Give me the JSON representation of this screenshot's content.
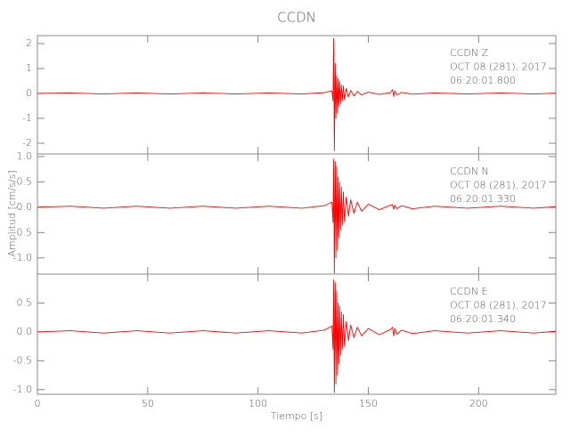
{
  "chart_data": [
    {
      "type": "line",
      "title": "CCDN",
      "annotation": [
        "CCDN   Z",
        "OCT 08 (281), 2017",
        "06:20:01.800"
      ],
      "x": [
        0,
        15,
        30,
        45,
        60,
        75,
        90,
        105,
        120,
        130,
        133.5,
        134,
        134.3,
        134.6,
        135,
        135.3,
        135.6,
        136,
        136.3,
        136.6,
        137,
        137.4,
        137.8,
        138.2,
        138.7,
        139.2,
        140,
        141,
        142,
        143.5,
        145,
        147,
        150,
        155,
        160,
        161,
        161.5,
        162,
        163,
        165,
        170,
        180,
        195,
        210,
        225,
        235
      ],
      "series": [
        {
          "color": "#ff0000",
          "values": [
            0,
            0.02,
            -0.02,
            0.02,
            -0.02,
            0.02,
            -0.02,
            0.02,
            -0.02,
            0.03,
            0.1,
            -0.3,
            2.2,
            -2.3,
            1.2,
            -1.0,
            0.7,
            -0.8,
            0.6,
            -0.5,
            0.5,
            -0.4,
            0.35,
            -0.3,
            0.3,
            -0.25,
            0.2,
            -0.15,
            0.12,
            -0.1,
            0.08,
            -0.06,
            0.05,
            -0.04,
            0.03,
            0.15,
            -0.12,
            0.1,
            -0.06,
            0.04,
            -0.03,
            0.02,
            -0.02,
            0.02,
            -0.02,
            0.01
          ]
        }
      ],
      "xlim": [
        0,
        235
      ],
      "xticks": [
        0,
        50,
        100,
        150,
        200
      ],
      "ylim": [
        -2.43,
        2.32
      ],
      "yticks": [
        2,
        1,
        0,
        -1,
        -2
      ]
    },
    {
      "type": "line",
      "ylabel": "Amplitud [cm/s/s]",
      "annotation": [
        "CCDN   N",
        "OCT 08 (281), 2017",
        "06:20:01.330"
      ],
      "x": [
        0,
        15,
        30,
        45,
        60,
        75,
        90,
        105,
        120,
        130,
        133.5,
        134,
        134.3,
        134.6,
        135,
        135.3,
        135.6,
        136,
        136.3,
        136.6,
        137,
        137.4,
        137.8,
        138.2,
        138.7,
        139.2,
        140,
        141,
        142,
        143.5,
        145,
        147,
        150,
        155,
        160,
        161,
        161.5,
        162,
        163,
        165,
        170,
        180,
        195,
        210,
        225,
        235
      ],
      "series": [
        {
          "color": "#ff0000",
          "values": [
            0,
            0.02,
            -0.02,
            0.02,
            -0.02,
            0.02,
            -0.02,
            0.02,
            -0.02,
            0.03,
            0.1,
            -0.3,
            0.95,
            -1.3,
            0.9,
            -1.0,
            0.8,
            -0.85,
            0.6,
            -0.6,
            0.5,
            -0.45,
            0.4,
            -0.35,
            0.3,
            -0.28,
            0.2,
            -0.18,
            0.15,
            -0.12,
            0.1,
            -0.08,
            0.06,
            -0.05,
            0.04,
            0.05,
            -0.04,
            0.04,
            -0.03,
            0.03,
            -0.03,
            0.02,
            -0.02,
            0.02,
            -0.02,
            0.01
          ]
        }
      ],
      "xlim": [
        0,
        235
      ],
      "xticks": [
        0,
        50,
        100,
        150,
        200
      ],
      "ylim": [
        -1.32,
        1.05
      ],
      "yticks": [
        {
          "value": 1.0,
          "label": "1.0"
        },
        {
          "value": 0.5,
          "label": "0.5"
        },
        {
          "value": 0.0,
          "label": "0.0"
        },
        {
          "value": -0.5,
          "label": "-0.5"
        },
        {
          "value": -1.0,
          "label": "-1.0"
        }
      ]
    },
    {
      "type": "line",
      "xlabel": "Tiempo [s]",
      "annotation": [
        "CCDN   E",
        "OCT 08 (281), 2017",
        "06:20:01.340"
      ],
      "x": [
        0,
        15,
        30,
        45,
        60,
        75,
        90,
        105,
        120,
        130,
        133.5,
        134,
        134.3,
        134.6,
        135,
        135.3,
        135.6,
        136,
        136.3,
        136.6,
        137,
        137.4,
        137.8,
        138.2,
        138.7,
        139.2,
        140,
        141,
        142,
        143.5,
        145,
        147,
        150,
        155,
        160,
        161,
        161.5,
        162,
        163,
        165,
        170,
        180,
        195,
        210,
        225,
        235
      ],
      "series": [
        {
          "color": "#ff0000",
          "values": [
            0,
            0.02,
            -0.02,
            0.02,
            -0.02,
            0.02,
            -0.02,
            0.02,
            -0.02,
            0.03,
            0.1,
            -0.3,
            0.9,
            -1.05,
            0.85,
            -0.9,
            0.7,
            -0.75,
            0.5,
            -0.55,
            0.45,
            -0.4,
            0.35,
            -0.3,
            0.3,
            -0.25,
            0.18,
            -0.15,
            0.12,
            -0.1,
            0.08,
            -0.07,
            0.06,
            -0.05,
            0.04,
            0.08,
            -0.07,
            0.06,
            -0.04,
            0.03,
            -0.03,
            0.02,
            -0.02,
            0.02,
            -0.02,
            0.01
          ]
        }
      ],
      "xlim": [
        0,
        235
      ],
      "xticks": [
        0,
        50,
        100,
        150,
        200
      ],
      "show_xtick_labels": true,
      "ylim": [
        -1.08,
        1.0
      ],
      "yticks": [
        {
          "value": 0.5,
          "label": "0.5"
        },
        {
          "value": 0.0,
          "label": "0.0"
        },
        {
          "value": -0.5,
          "label": "-0.5"
        },
        {
          "value": -1.0,
          "label": "-1.0"
        }
      ]
    }
  ]
}
